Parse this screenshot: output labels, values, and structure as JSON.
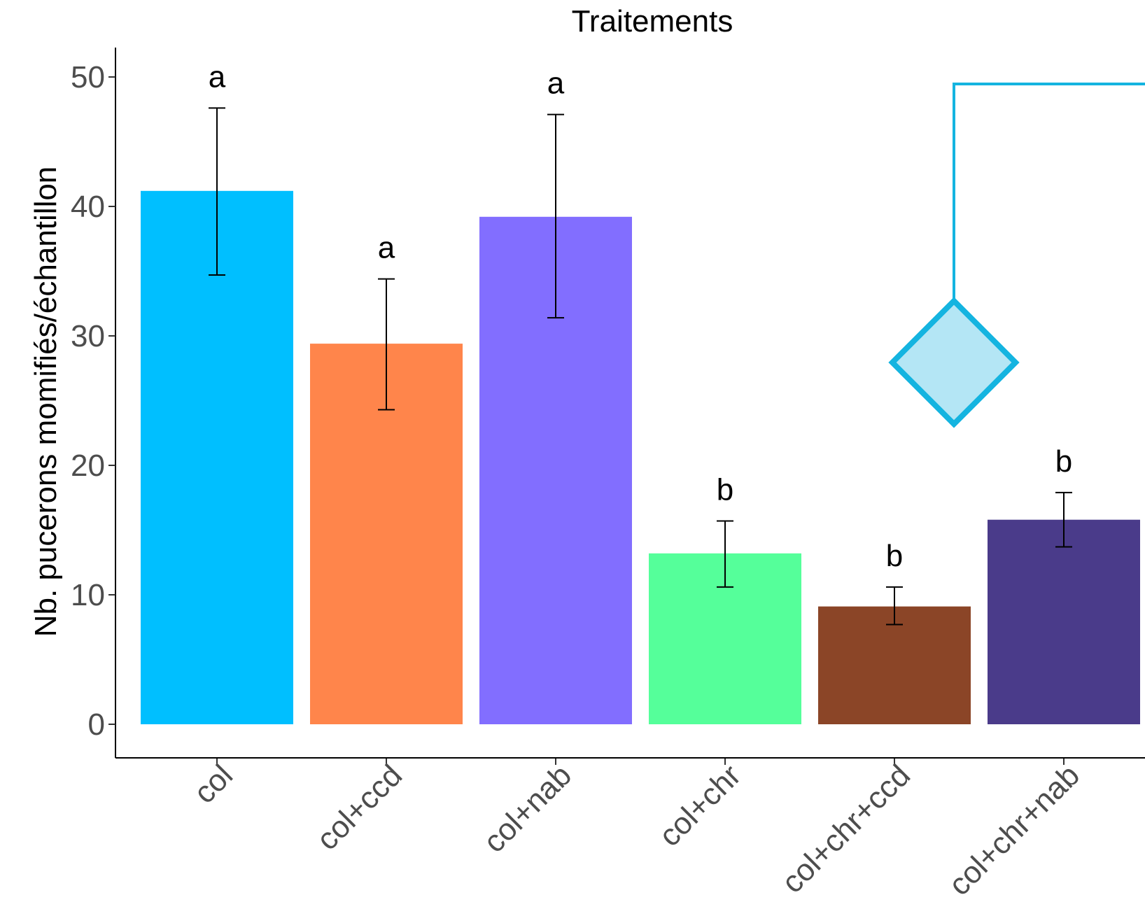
{
  "chart_data": {
    "type": "bar",
    "title": "Traitements",
    "xlabel": "",
    "ylabel": "Nb. pucerons momifiés/échantillon",
    "ylim": [
      0,
      52
    ],
    "yticks": [
      0,
      10,
      20,
      30,
      40,
      50
    ],
    "grid": false,
    "legend": "none",
    "categories": [
      "col",
      "col+ccd",
      "col+nab",
      "col+chr",
      "col+chr+ccd",
      "col+chr+nab"
    ],
    "values": [
      41.2,
      29.4,
      39.2,
      13.2,
      9.1,
      15.8
    ],
    "error_low": [
      34.7,
      24.3,
      31.4,
      10.6,
      7.7,
      13.7
    ],
    "error_high": [
      47.6,
      34.4,
      47.1,
      15.7,
      10.6,
      17.9
    ],
    "significance": [
      "a",
      "a",
      "a",
      "b",
      "b",
      "b"
    ],
    "colors": [
      "#00BFFF",
      "#FF854B",
      "#826EFF",
      "#55FF9A",
      "#8B4527",
      "#4A3B8A"
    ]
  },
  "overlay": {
    "shape": "diamond-marker",
    "stroke_color": "#14B4E0",
    "fill_color": "#B4E6F5"
  }
}
